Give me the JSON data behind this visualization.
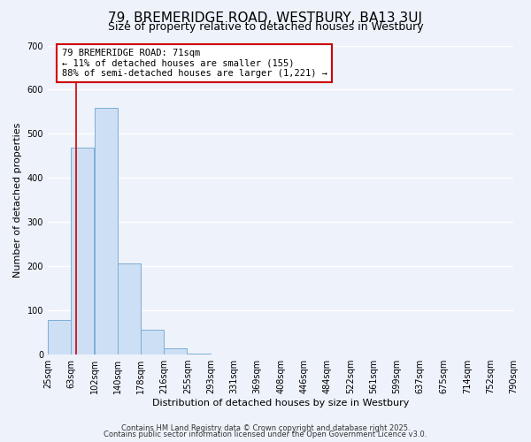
{
  "title": "79, BREMERIDGE ROAD, WESTBURY, BA13 3UJ",
  "subtitle": "Size of property relative to detached houses in Westbury",
  "bar_left_edges": [
    25,
    63,
    102,
    140,
    178,
    216,
    255,
    293,
    331,
    369,
    408,
    446,
    484,
    522,
    561,
    599,
    637,
    675,
    714,
    752
  ],
  "bar_heights": [
    78,
    468,
    558,
    207,
    57,
    14,
    3,
    0,
    0,
    0,
    0,
    0,
    0,
    0,
    0,
    0,
    0,
    0,
    0,
    0
  ],
  "bin_width": 38,
  "bar_color": "#cddff5",
  "bar_edge_color": "#7bafd4",
  "tick_labels": [
    "25sqm",
    "63sqm",
    "102sqm",
    "140sqm",
    "178sqm",
    "216sqm",
    "255sqm",
    "293sqm",
    "331sqm",
    "369sqm",
    "408sqm",
    "446sqm",
    "484sqm",
    "522sqm",
    "561sqm",
    "599sqm",
    "637sqm",
    "675sqm",
    "714sqm",
    "752sqm",
    "790sqm"
  ],
  "xlabel": "Distribution of detached houses by size in Westbury",
  "ylabel": "Number of detached properties",
  "ylim": [
    0,
    700
  ],
  "yticks": [
    0,
    100,
    200,
    300,
    400,
    500,
    600,
    700
  ],
  "vline_x": 71,
  "vline_color": "#cc0000",
  "annotation_text": "79 BREMERIDGE ROAD: 71sqm\n← 11% of detached houses are smaller (155)\n88% of semi-detached houses are larger (1,221) →",
  "annotation_box_color": "#cc0000",
  "footer_line1": "Contains HM Land Registry data © Crown copyright and database right 2025.",
  "footer_line2": "Contains public sector information licensed under the Open Government Licence v3.0.",
  "background_color": "#eef2fb",
  "grid_color": "#ffffff",
  "title_fontsize": 11,
  "subtitle_fontsize": 9,
  "axis_label_fontsize": 8,
  "tick_fontsize": 7,
  "footer_fontsize": 6,
  "annotation_fontsize": 7.5
}
